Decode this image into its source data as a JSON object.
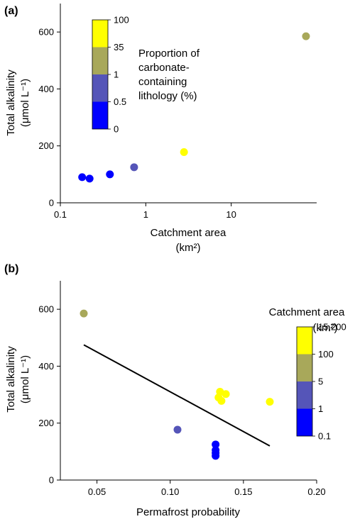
{
  "chart_data": [
    {
      "panel_label": "(a)",
      "type": "scatter",
      "x_scale": "log",
      "xlim": [
        0.1,
        100
      ],
      "ylim": [
        0,
        700
      ],
      "xlabel": "Catchment area",
      "xlabel_unit": "(km²)",
      "ylabel": "Total alkalinity",
      "ylabel_unit": "(μmol L⁻¹)",
      "x_ticks": [
        {
          "value": 0.1,
          "label": "0.1"
        },
        {
          "value": 1,
          "label": "1"
        },
        {
          "value": 10,
          "label": "10"
        }
      ],
      "y_ticks": [
        {
          "value": 0,
          "label": "0"
        },
        {
          "value": 200,
          "label": "200"
        },
        {
          "value": 400,
          "label": "400"
        },
        {
          "value": 600,
          "label": "600"
        }
      ],
      "colorbar": {
        "title_lines": [
          "Proportion of",
          "carbonate-",
          "containing",
          "lithology (%)"
        ],
        "bands": [
          {
            "color": "#0000ff",
            "range": "0–0.5"
          },
          {
            "color": "#5555b8",
            "range": "0.5–1"
          },
          {
            "color": "#a8a85a",
            "range": "1–35"
          },
          {
            "color": "#ffff00",
            "range": "35–100"
          }
        ],
        "tick_labels": [
          "0",
          "0.5",
          "1",
          "35",
          "100"
        ]
      },
      "points": [
        {
          "x": 0.18,
          "y": 90,
          "color": "#0000ff"
        },
        {
          "x": 0.22,
          "y": 85,
          "color": "#0000ff"
        },
        {
          "x": 0.38,
          "y": 100,
          "color": "#0000ff"
        },
        {
          "x": 0.73,
          "y": 125,
          "color": "#5555b8"
        },
        {
          "x": 2.8,
          "y": 178,
          "color": "#ffff00"
        },
        {
          "x": 75,
          "y": 585,
          "color": "#a8a85a"
        }
      ]
    },
    {
      "panel_label": "(b)",
      "type": "scatter",
      "x_scale": "linear",
      "xlim": [
        0.025,
        0.2
      ],
      "ylim": [
        0,
        700
      ],
      "xlabel": "Permafrost probability",
      "ylabel": "Total alkalinity",
      "ylabel_unit": "(μmol L⁻¹)",
      "x_ticks": [
        {
          "value": 0.05,
          "label": "0.05"
        },
        {
          "value": 0.1,
          "label": "0.10"
        },
        {
          "value": 0.15,
          "label": "0.15"
        },
        {
          "value": 0.2,
          "label": "0.20"
        }
      ],
      "y_ticks": [
        {
          "value": 0,
          "label": "0"
        },
        {
          "value": 200,
          "label": "200"
        },
        {
          "value": 400,
          "label": "400"
        },
        {
          "value": 600,
          "label": "600"
        }
      ],
      "colorbar": {
        "title_lines": [
          "Catchment area",
          "(km²)"
        ],
        "bands": [
          {
            "color": "#0000ff",
            "range": "0.1–1"
          },
          {
            "color": "#5555b8",
            "range": "1–5"
          },
          {
            "color": "#a8a85a",
            "range": "5–100"
          },
          {
            "color": "#ffff00",
            "range": "100–15,200"
          }
        ],
        "tick_labels": [
          "0.1",
          "1",
          "5",
          "100",
          "15,200"
        ]
      },
      "points": [
        {
          "x": 0.041,
          "y": 585,
          "color": "#a8a85a"
        },
        {
          "x": 0.105,
          "y": 177,
          "color": "#5555b8"
        },
        {
          "x": 0.131,
          "y": 125,
          "color": "#0000ff"
        },
        {
          "x": 0.131,
          "y": 105,
          "color": "#0000ff"
        },
        {
          "x": 0.131,
          "y": 95,
          "color": "#0000ff"
        },
        {
          "x": 0.131,
          "y": 85,
          "color": "#0000ff"
        },
        {
          "x": 0.133,
          "y": 290,
          "color": "#ffff00"
        },
        {
          "x": 0.134,
          "y": 310,
          "color": "#ffff00"
        },
        {
          "x": 0.135,
          "y": 278,
          "color": "#ffff00"
        },
        {
          "x": 0.138,
          "y": 302,
          "color": "#ffff00"
        },
        {
          "x": 0.168,
          "y": 275,
          "color": "#ffff00"
        }
      ],
      "regression_line": {
        "x": [
          0.041,
          0.168
        ],
        "y": [
          475,
          120
        ]
      }
    }
  ]
}
